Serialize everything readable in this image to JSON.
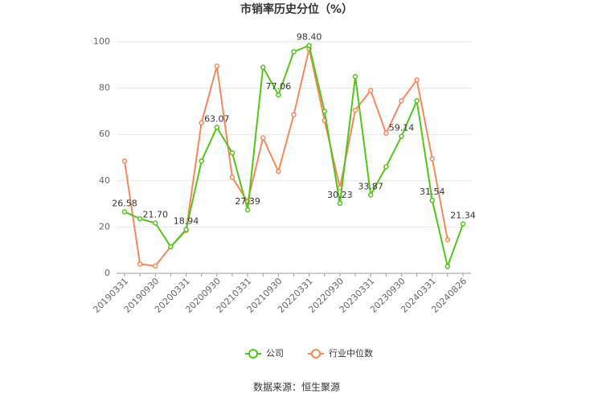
{
  "chart_data": {
    "type": "line",
    "title": "市销率历史分位（%）",
    "categories": [
      "20190331",
      null,
      "20190930",
      null,
      "20200331",
      null,
      "20200930",
      null,
      "20210331",
      null,
      "20210930",
      null,
      "20220331",
      null,
      "20220930",
      null,
      "20230331",
      null,
      "20230930",
      null,
      "20240331",
      null,
      "20240826"
    ],
    "series": [
      {
        "name": "公司",
        "color": "#52c41a",
        "values": [
          26.58,
          23.6,
          21.7,
          11.5,
          18.94,
          48.5,
          63.07,
          52,
          27.39,
          89,
          77.06,
          95.7,
          98.4,
          70,
          30.23,
          85,
          33.87,
          46,
          59.14,
          74.5,
          31.54,
          3,
          21.34
        ],
        "value_labels": [
          "26.58",
          null,
          "21.70",
          null,
          "18.94",
          null,
          "63.07",
          null,
          "27.39",
          null,
          "77.06",
          null,
          "98.40",
          null,
          "30.23",
          null,
          "33.87",
          null,
          "59.14",
          null,
          "31.54",
          null,
          "21.34"
        ]
      },
      {
        "name": "行业中位数",
        "color": "#f5875a",
        "values": [
          48.5,
          4,
          3.2,
          11.5,
          18.5,
          65,
          89.5,
          41.5,
          31,
          58.5,
          44,
          68.5,
          97,
          66,
          37,
          70.5,
          79,
          60.5,
          74.5,
          83.5,
          49.5,
          14.5,
          null
        ]
      }
    ],
    "ylim": [
      0,
      100
    ],
    "yticks": [
      0,
      20,
      40,
      60,
      80,
      100
    ],
    "grid": true,
    "source": "数据来源：恒生聚源"
  }
}
